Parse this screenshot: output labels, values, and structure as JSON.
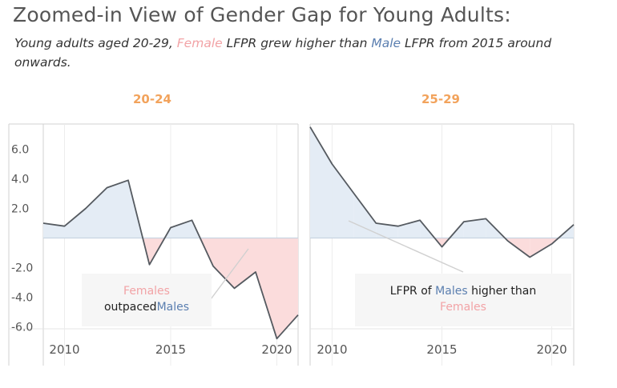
{
  "title": "Zoomed-in View of Gender Gap for Young Adults:",
  "subtitle": {
    "prefix": "Young adults aged 20-29,",
    "female": "Female",
    "middle": "LFPR grew higher than",
    "male": "Male",
    "suffix": "LFPR  from 2015 around onwards."
  },
  "annotations": {
    "left": {
      "line1": "Females",
      "line2a": "outpaced",
      "line2b": "Males"
    },
    "right": {
      "line1a": "LFPR of",
      "line1b": "Males",
      "line1c": "higher than",
      "line2": "Females"
    }
  },
  "colors": {
    "positive_fill": "#e4ecf5",
    "negative_fill": "#fbdcdc",
    "line": "#555a60",
    "title_accent": "#f2a35c",
    "female": "#f2a3a6",
    "male": "#5b7fb0"
  },
  "chart_data": [
    {
      "type": "area",
      "title": "20-24",
      "x": [
        2009,
        2010,
        2011,
        2012,
        2013,
        2014,
        2015,
        2016,
        2017,
        2018,
        2019,
        2020,
        2021
      ],
      "values": [
        1.0,
        0.8,
        2.0,
        3.4,
        3.9,
        -1.8,
        0.7,
        1.2,
        -1.9,
        -3.4,
        -2.3,
        -6.8,
        -5.2
      ],
      "xlim": [
        2009,
        2021
      ],
      "ylim": [
        -7,
        7.7
      ],
      "y_ticks": [
        6.0,
        4.0,
        2.0,
        -2.0,
        -4.0,
        -6.0
      ],
      "y_tick_labels": [
        "6.0",
        "4.0",
        "2.0",
        "-2.0",
        "-4.0",
        "-6.0"
      ],
      "x_ticks": [
        2010,
        2015,
        2020
      ],
      "x_tick_labels": [
        "2010",
        "2015",
        "2020"
      ],
      "grid": true
    },
    {
      "type": "area",
      "title": "25-29",
      "x": [
        2009,
        2010,
        2011,
        2012,
        2013,
        2014,
        2015,
        2016,
        2017,
        2018,
        2019,
        2020,
        2021
      ],
      "values": [
        7.5,
        5.0,
        3.0,
        1.0,
        0.8,
        1.2,
        -0.6,
        1.1,
        1.3,
        -0.2,
        -1.3,
        -0.4,
        0.9
      ],
      "xlim": [
        2009,
        2021
      ],
      "ylim": [
        -7,
        7.7
      ],
      "x_ticks": [
        2010,
        2015,
        2020
      ],
      "x_tick_labels": [
        "2010",
        "2015",
        "2020"
      ],
      "grid": true
    }
  ]
}
